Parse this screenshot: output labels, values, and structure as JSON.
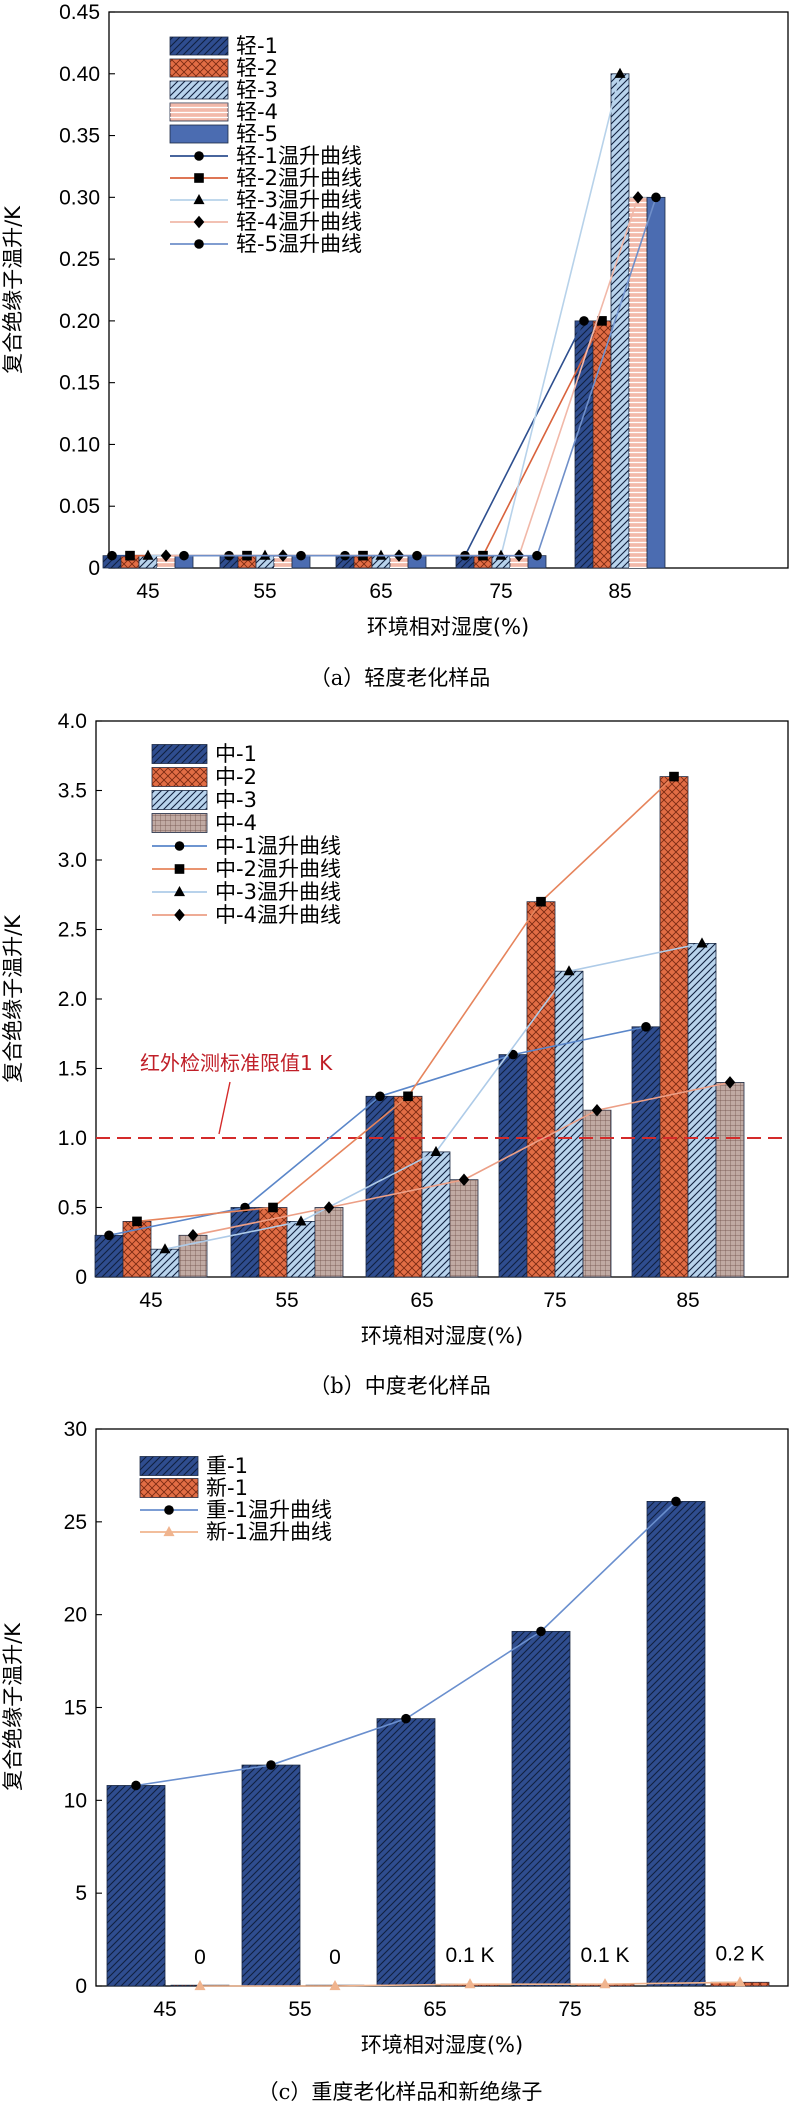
{
  "colors": {
    "navy": "#2f4d8f",
    "orange": "#e26d45",
    "lightblue": "#b8d3ec",
    "pink": "#f2b9aa",
    "blue": "#4b6cb1",
    "brown": "#c0aaa3",
    "red_line": "#d42a2a",
    "new_line": "#f0b48e"
  },
  "chart_data": [
    {
      "type": "bar",
      "title": "",
      "caption": "（a）轻度老化样品",
      "xlabel": "环境相对湿度(%)",
      "ylabel": "复合绝缘子温升/K",
      "categories": [
        "45",
        "55",
        "65",
        "75",
        "85"
      ],
      "ylim": [
        0,
        0.45
      ],
      "yticks": [
        "0",
        "0.05",
        "0.10",
        "0.15",
        "0.20",
        "0.25",
        "0.30",
        "0.35",
        "0.40",
        "0.45"
      ],
      "series": [
        {
          "name": "轻-1",
          "curve_name": "轻-1温升曲线",
          "values": [
            0.01,
            0.01,
            0.01,
            0.01,
            0.2
          ],
          "fill": "navy",
          "hatch": "back",
          "line": "#2e4f8f",
          "marker": "circle"
        },
        {
          "name": "轻-2",
          "curve_name": "轻-2温升曲线",
          "values": [
            0.01,
            0.01,
            0.01,
            0.01,
            0.2
          ],
          "fill": "orange",
          "hatch": "cross",
          "line": "#d9633d",
          "marker": "square"
        },
        {
          "name": "轻-3",
          "curve_name": "轻-3温升曲线",
          "values": [
            0.01,
            0.01,
            0.01,
            0.01,
            0.4
          ],
          "fill": "lightblue",
          "hatch": "back",
          "line": "#b7d2ea",
          "marker": "triangle"
        },
        {
          "name": "轻-4",
          "curve_name": "轻-4温升曲线",
          "values": [
            0.01,
            0.01,
            0.01,
            0.01,
            0.3
          ],
          "fill": "pink",
          "hatch": "hlines",
          "line": "#f1b8a8",
          "marker": "diamond"
        },
        {
          "name": "轻-5",
          "curve_name": "轻-5温升曲线",
          "values": [
            0.01,
            0.01,
            0.01,
            0.01,
            0.3
          ],
          "fill": "blue",
          "hatch": "none",
          "line": "#6f8fc9",
          "marker": "circle"
        }
      ]
    },
    {
      "type": "bar",
      "title": "",
      "caption": "（b）中度老化样品",
      "xlabel": "环境相对湿度(%)",
      "ylabel": "复合绝缘子温升/K",
      "categories": [
        "45",
        "55",
        "65",
        "75",
        "85"
      ],
      "ylim": [
        0,
        4.0
      ],
      "yticks": [
        "0",
        "0.5",
        "1.0",
        "1.5",
        "2.0",
        "2.5",
        "3.0",
        "3.5",
        "4.0"
      ],
      "threshold": {
        "value": 1.0,
        "label": "红外检测标准限值1 K"
      },
      "series": [
        {
          "name": "中-1",
          "curve_name": "中-1温升曲线",
          "values": [
            0.3,
            0.5,
            1.3,
            1.6,
            1.8
          ],
          "fill": "navy",
          "hatch": "back",
          "line": "#5a86c9",
          "marker": "circle"
        },
        {
          "name": "中-2",
          "curve_name": "中-2温升曲线",
          "values": [
            0.4,
            0.5,
            1.3,
            2.7,
            3.6
          ],
          "fill": "orange",
          "hatch": "cross",
          "line": "#e6845c",
          "marker": "square"
        },
        {
          "name": "中-3",
          "curve_name": "中-3温升曲线",
          "values": [
            0.2,
            0.4,
            0.9,
            2.2,
            2.4
          ],
          "fill": "lightblue",
          "hatch": "back",
          "line": "#aecbe8",
          "marker": "triangle"
        },
        {
          "name": "中-4",
          "curve_name": "中-4温升曲线",
          "values": [
            0.3,
            0.5,
            0.7,
            1.2,
            1.4
          ],
          "fill": "brown",
          "hatch": "grid",
          "line": "#ec9f86",
          "marker": "diamond"
        }
      ]
    },
    {
      "type": "bar",
      "title": "",
      "caption": "（c）重度老化样品和新绝缘子",
      "xlabel": "环境相对湿度(%)",
      "ylabel": "复合绝缘子温升/K",
      "categories": [
        "45",
        "55",
        "65",
        "75",
        "85"
      ],
      "ylim": [
        0,
        30
      ],
      "yticks": [
        "0",
        "5",
        "10",
        "15",
        "20",
        "25",
        "30"
      ],
      "series": [
        {
          "name": "重-1",
          "curve_name": "重-1温升曲线",
          "values": [
            10.8,
            11.9,
            14.4,
            19.1,
            26.1
          ],
          "fill": "navy",
          "hatch": "back",
          "line": "#6a8fce",
          "marker": "circle"
        },
        {
          "name": "新-1",
          "curve_name": "新-1温升曲线",
          "values": [
            0,
            0,
            0.1,
            0.1,
            0.2
          ],
          "fill": "orange",
          "hatch": "cross",
          "line": "#f0b48e",
          "marker": "triangle"
        }
      ],
      "value_labels": [
        "0",
        "0",
        "0.1 K",
        "0.1 K",
        "0.2 K"
      ]
    }
  ]
}
